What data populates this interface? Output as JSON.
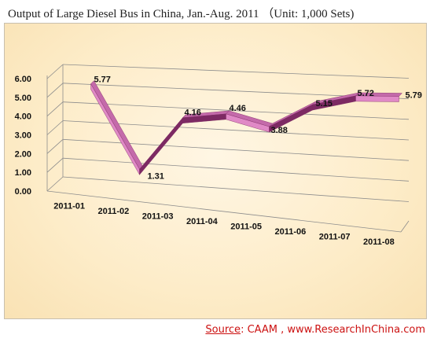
{
  "title": "Output of Large Diesel Bus in China, Jan.-Aug. 2011 （Unit: 1,000 Sets)",
  "source": {
    "key": "Source",
    "sep": ":  ",
    "text": "CAAM , www.ResearchInChina.com"
  },
  "colors": {
    "line_front": "#e089c6",
    "line_top": "#c46aaa",
    "line_edge": "#7d2a63",
    "grid": "#8c8c8c",
    "source": "#cc1111"
  },
  "chart_data": {
    "type": "line",
    "style": "3d-ribbon",
    "title": "Output of Large Diesel Bus in China, Jan.-Aug. 2011 （Unit: 1,000 Sets)",
    "xlabel": "",
    "ylabel": "",
    "categories": [
      "2011-01",
      "2011-02",
      "2011-03",
      "2011-04",
      "2011-05",
      "2011-06",
      "2011-07",
      "2011-08"
    ],
    "series": [
      {
        "values": [
          5.77,
          1.31,
          4.16,
          4.46,
          3.88,
          5.15,
          5.72,
          5.79
        ]
      }
    ],
    "value_labels": [
      "5.77",
      "1.31",
      "4.16",
      "4.46",
      "3.88",
      "5.15",
      "5.72",
      "5.79"
    ],
    "y_ticks": [
      "0.00",
      "1.00",
      "2.00",
      "3.00",
      "4.00",
      "5.00",
      "6.00"
    ],
    "ylim": [
      0,
      6
    ],
    "grid": true,
    "legend": "none"
  }
}
